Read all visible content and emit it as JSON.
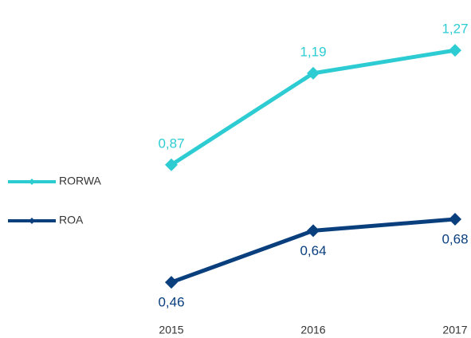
{
  "chart_data": {
    "type": "line",
    "categories": [
      "2015",
      "2016",
      "2017"
    ],
    "series": [
      {
        "name": "RORWA",
        "color": "#2dccd3",
        "values": [
          0.87,
          1.19,
          1.27
        ],
        "value_labels": [
          "0,87",
          "1,19",
          "1,27"
        ]
      },
      {
        "name": "ROA",
        "color": "#0a3f7e",
        "values": [
          0.46,
          0.64,
          0.68
        ],
        "value_labels": [
          "0,46",
          "0,64",
          "0,68"
        ]
      }
    ],
    "ylim": [
      0.36,
      1.39
    ]
  }
}
